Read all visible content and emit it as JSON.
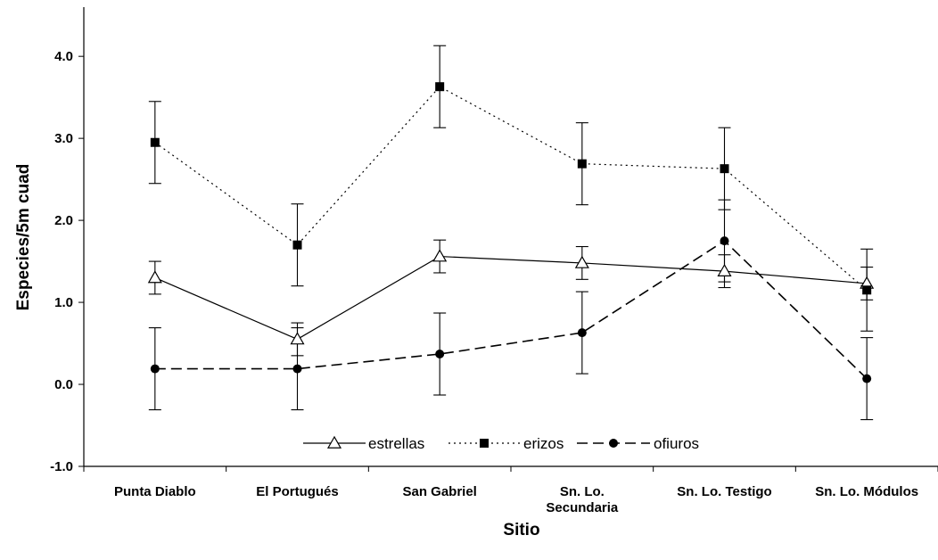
{
  "chart_data": {
    "type": "line",
    "title": "",
    "xlabel": "Sitio",
    "ylabel": "Especies/5m cuad",
    "ylim": [
      -1.0,
      4.6
    ],
    "yticks": [
      -1.0,
      0.0,
      1.0,
      2.0,
      3.0,
      4.0
    ],
    "ytick_labels": [
      "-1.0",
      "0.0",
      "1.0",
      "2.0",
      "3.0",
      "4.0"
    ],
    "categories": [
      [
        "Punta Diablo"
      ],
      [
        "El Portugués"
      ],
      [
        "San Gabriel"
      ],
      [
        "Sn. Lo.",
        "Secundaria"
      ],
      [
        "Sn. Lo. Testigo"
      ],
      [
        "Sn. Lo. Módulos"
      ]
    ],
    "series": [
      {
        "name": "estrellas",
        "marker": "open-triangle",
        "line_style": "solid",
        "values": [
          1.3,
          0.55,
          1.56,
          1.48,
          1.38,
          1.23
        ],
        "error": [
          0.2,
          0.2,
          0.2,
          0.2,
          0.2,
          0.2
        ]
      },
      {
        "name": "erizos",
        "marker": "filled-square",
        "line_style": "dotted",
        "values": [
          2.95,
          1.7,
          3.63,
          2.69,
          2.63,
          1.15
        ],
        "error": [
          0.5,
          0.5,
          0.5,
          0.5,
          0.5,
          0.5
        ]
      },
      {
        "name": "ofiuros",
        "marker": "filled-circle",
        "line_style": "dashed",
        "values": [
          0.19,
          0.19,
          0.37,
          0.63,
          1.75,
          0.07
        ],
        "error": [
          0.5,
          0.5,
          0.5,
          0.5,
          0.5,
          0.5
        ]
      }
    ],
    "legend_position": "bottom-center, inside plot",
    "grid": false
  }
}
